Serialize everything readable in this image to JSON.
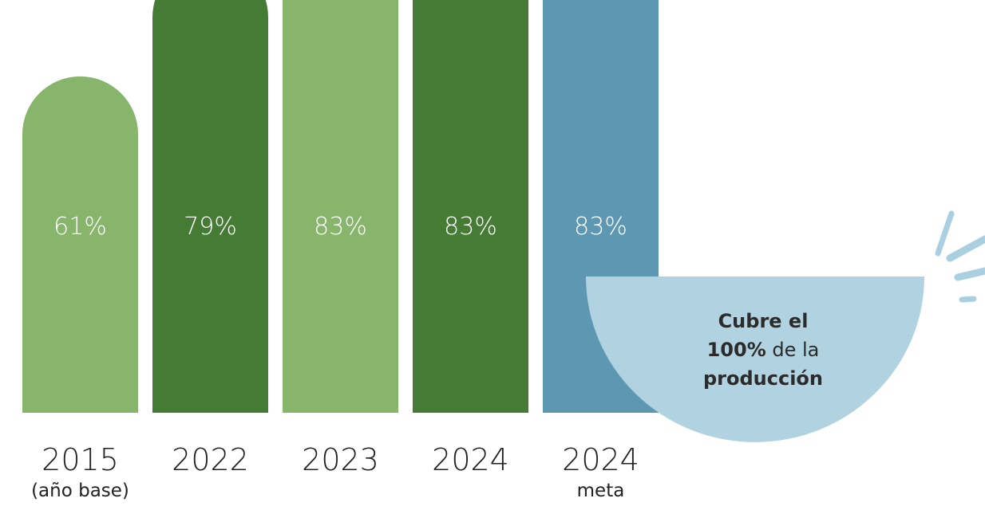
{
  "chart_data": {
    "type": "bar",
    "unit": "%",
    "ylim": [
      0,
      100
    ],
    "grid": false,
    "categories": [
      "2015",
      "2022",
      "2023",
      "2024",
      "2024"
    ],
    "sub_labels": [
      "(año base)",
      "",
      "",
      "",
      "meta"
    ],
    "values": [
      61,
      79,
      83,
      83,
      83
    ],
    "value_labels": [
      "61%",
      "79%",
      "83%",
      "83%",
      "83%"
    ],
    "colors": [
      "#86b56b",
      "#467b35",
      "#86b56b",
      "#467b35",
      "#5e97b2"
    ],
    "callout": {
      "lines": [
        {
          "bold": "Cubre el",
          "rest": ""
        },
        {
          "bold": "100%",
          "rest": " de la"
        },
        {
          "bold": "producción",
          "rest": ""
        }
      ],
      "color": "#b1d2e0",
      "accent": "#a9cfe0"
    }
  }
}
